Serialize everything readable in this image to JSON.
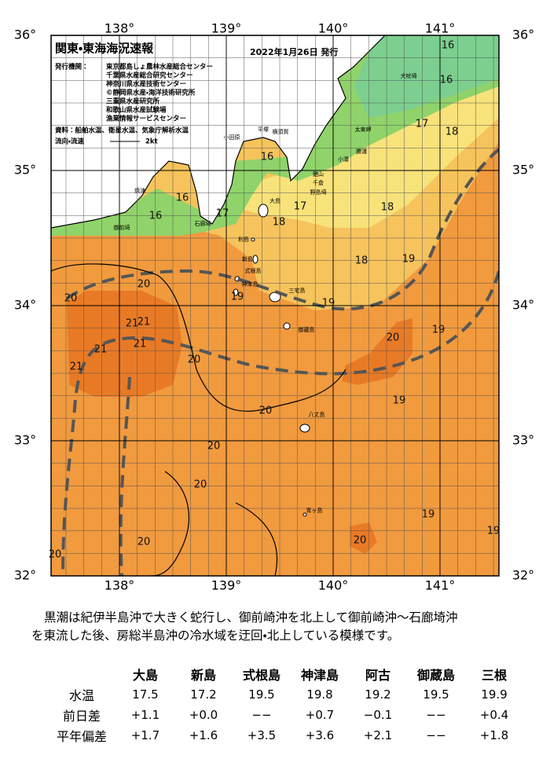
{
  "header": {
    "title": "関東・東海海況速報",
    "date": "2022年1月26日 発行",
    "publisher_label": "発行機関：",
    "publishers": [
      "東京都島しょ農林水産総合センター",
      "千葉県水産総合研究センター",
      "神奈川県水産技術センター",
      "©静岡県水産・海洋技術研究所",
      "三重県水産研究所",
      "和歌山県水産試験場",
      "漁業情報サービスセンター"
    ],
    "source": "資料：船舶水温、衛星水温、気象庁解析水温",
    "current_legend": "流向・流速",
    "current_speed": "2kt"
  },
  "map": {
    "lon_ticks": [
      {
        "value": 138,
        "label": "138°"
      },
      {
        "value": 139,
        "label": "139°"
      },
      {
        "value": 140,
        "label": "140°"
      },
      {
        "value": 141,
        "label": "141°"
      }
    ],
    "lat_ticks": [
      {
        "value": 36,
        "label": "36°"
      },
      {
        "value": 35,
        "label": "35°"
      },
      {
        "value": 34,
        "label": "34°"
      },
      {
        "value": 33,
        "label": "33°"
      },
      {
        "value": 32,
        "label": "32°"
      }
    ],
    "isotherm_labels": [
      16,
      16,
      17,
      18,
      16,
      17,
      16,
      16,
      18,
      17,
      18,
      18,
      19,
      20,
      20,
      19,
      19,
      21,
      21,
      21,
      21,
      21,
      20,
      20,
      19,
      19,
      20,
      20,
      20,
      20,
      20,
      19,
      20,
      19
    ],
    "place_names": [
      "犬吠埼",
      "太東岬",
      "勝浦",
      "小湊",
      "館山",
      "千倉",
      "野島埼",
      "平塚",
      "小田原",
      "横須賀",
      "焼津",
      "御前埼",
      "石廊埼"
    ],
    "island_names": [
      "大島",
      "利島",
      "新島",
      "式根島",
      "神津島",
      "三宅島",
      "御蔵島",
      "八丈島",
      "青ヶ島"
    ]
  },
  "description": [
    "黒潮は紀伊半島沖で大きく蛇行し、御前崎沖を北上して御前崎沖～石廊埼沖",
    "を東流した後、房総半島沖の冷水域を迂回・北上している模様です。"
  ],
  "table": {
    "columns": [
      "大島",
      "新島",
      "式根島",
      "神津島",
      "阿古",
      "御蔵島",
      "三根"
    ],
    "rows": [
      {
        "label": "水温",
        "cells": [
          17.5,
          17.2,
          19.5,
          19.8,
          19.2,
          19.5,
          19.9
        ]
      },
      {
        "label": "前日差",
        "cells": [
          "+1.1",
          "+0.0",
          "−−",
          "+0.7",
          "−0.1",
          "−−",
          "+0.4"
        ]
      },
      {
        "label": "平年偏差",
        "cells": [
          "+1.7",
          "+1.6",
          "+3.5",
          "+3.6",
          "+2.1",
          "−−",
          "+1.8"
        ]
      }
    ]
  }
}
